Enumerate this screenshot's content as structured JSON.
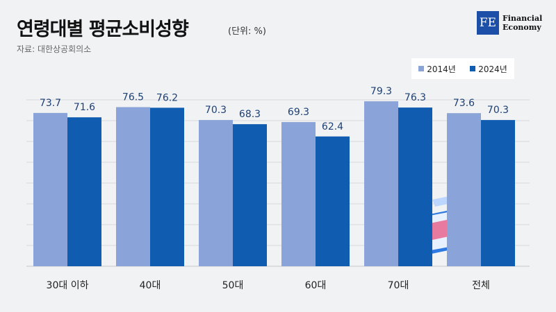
{
  "title": "연령대별 평균소비성향",
  "unit": "(단위: %)",
  "source": "자료: 대한상공회의소",
  "logo": {
    "mark": "FE",
    "line1": "Financial",
    "line2": "Economy"
  },
  "colors": {
    "s2014": "#8aa3d8",
    "s2024": "#0f5cb0"
  },
  "chart_data": {
    "type": "bar",
    "categories": [
      "30대 이하",
      "40대",
      "50대",
      "60대",
      "70대",
      "전체"
    ],
    "series": [
      {
        "name": "2014년",
        "values": [
          73.7,
          76.5,
          70.3,
          69.3,
          79.3,
          73.6
        ]
      },
      {
        "name": "2024년",
        "values": [
          71.6,
          76.2,
          68.3,
          62.4,
          76.3,
          70.3
        ]
      }
    ],
    "value_labels": [
      [
        "73.7",
        "76.5",
        "70.3",
        "69.3",
        "79.3",
        "73.6"
      ],
      [
        "71.6",
        "76.2",
        "68.3",
        "62.4",
        "76.3",
        "70.3"
      ]
    ],
    "ylim": [
      0,
      80
    ],
    "grid": true,
    "legend": "top-right"
  }
}
